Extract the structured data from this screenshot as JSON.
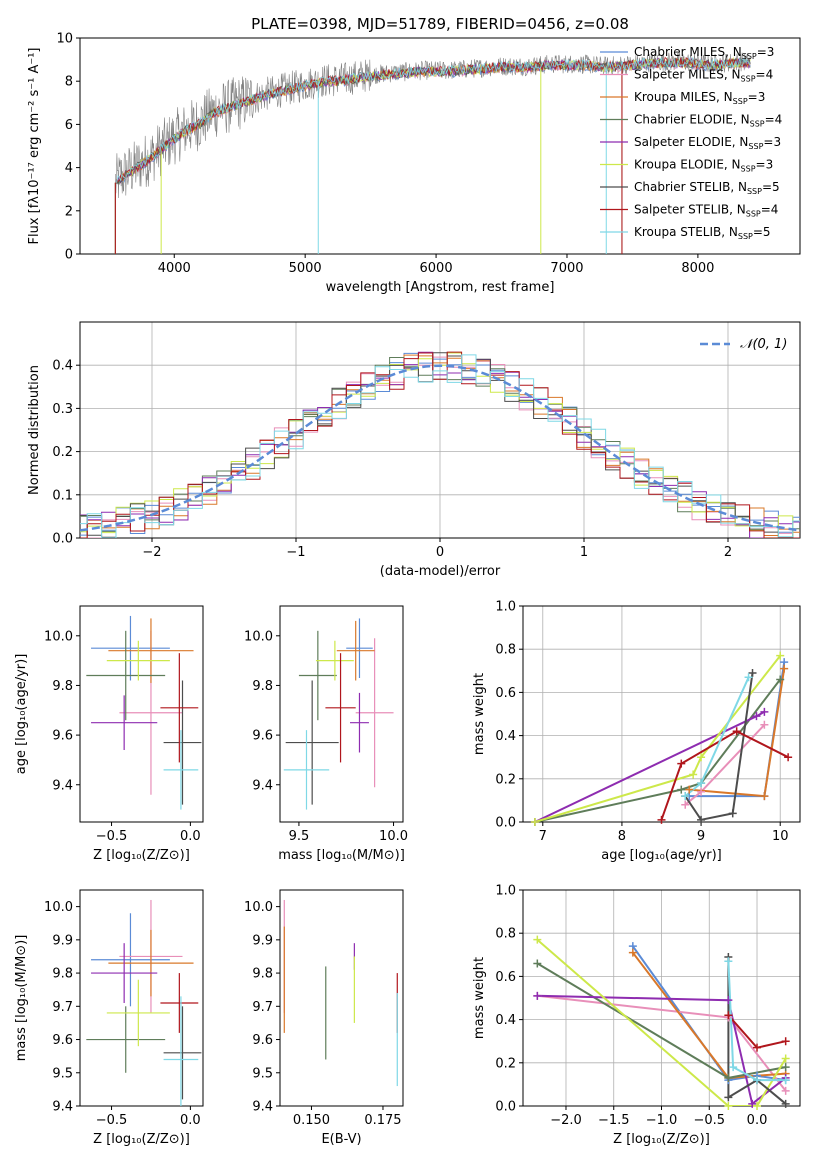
{
  "figure_title": "PLATE=0398, MJD=51789, FIBERID=0456, z=0.08",
  "series_colors": {
    "Chabrier MILES": "#5b8bd6",
    "Salpeter MILES": "#e88fb9",
    "Kroupa MILES": "#d9782a",
    "Chabrier ELODIE": "#5f7d5a",
    "Salpeter ELODIE": "#8e2cb0",
    "Kroupa ELODIE": "#cde84a",
    "Chabrier STELIB": "#4d4d4d",
    "Salpeter STELIB": "#b0161c",
    "Kroupa STELIB": "#7fd8e6"
  },
  "chart_data": [
    {
      "id": "spectrum",
      "type": "line",
      "xlabel": "wavelength [Angstrom, rest frame]",
      "ylabel": "Flux [fλ10⁻¹⁷ erg cm⁻² s⁻¹ A⁻¹]",
      "xlim": [
        3280,
        8780
      ],
      "ylim": [
        0,
        10
      ],
      "xticks": [
        4000,
        5000,
        6000,
        7000,
        8000
      ],
      "yticks": [
        0,
        2,
        4,
        6,
        8,
        10
      ],
      "legend_position": "right",
      "legend": [
        {
          "name": "Chabrier MILES",
          "nssp": "3"
        },
        {
          "name": "Salpeter MILES",
          "nssp": "4"
        },
        {
          "name": "Kroupa MILES",
          "nssp": "3"
        },
        {
          "name": "Chabrier ELODIE",
          "nssp": "4"
        },
        {
          "name": "Salpeter ELODIE",
          "nssp": "3"
        },
        {
          "name": "Kroupa ELODIE",
          "nssp": "3"
        },
        {
          "name": "Chabrier STELIB",
          "nssp": "5"
        },
        {
          "name": "Salpeter STELIB",
          "nssp": "4"
        },
        {
          "name": "Kroupa STELIB",
          "nssp": "5"
        }
      ],
      "data_curve": {
        "x": [
          3550,
          3600,
          3700,
          3800,
          3900,
          4000,
          4100,
          4200,
          4300,
          4500,
          4700,
          4900,
          5100,
          5300,
          5500,
          5700,
          5900,
          6100,
          6300,
          6500,
          6700,
          6900,
          7100,
          7300,
          7500,
          7700,
          7900,
          8100,
          8300
        ],
        "y": [
          3.3,
          3.6,
          4.0,
          4.4,
          4.9,
          5.4,
          5.8,
          6.1,
          6.6,
          7.0,
          7.4,
          7.7,
          8.0,
          8.1,
          8.3,
          8.4,
          8.5,
          8.5,
          8.6,
          8.7,
          8.7,
          8.8,
          8.8,
          8.7,
          8.8,
          8.9,
          8.9,
          8.8,
          8.9
        ]
      }
    },
    {
      "id": "residuals",
      "type": "histogram",
      "xlabel": "(data-model)/error",
      "ylabel": "Normed distribution",
      "xlim": [
        -2.5,
        2.5
      ],
      "ylim": [
        0,
        0.5
      ],
      "xticks": [
        -2,
        -1,
        0,
        1,
        2
      ],
      "yticks": [
        0.0,
        0.1,
        0.2,
        0.3,
        0.4
      ],
      "grid": true,
      "legend_position": "top-right",
      "gaussian_label": "𝒩(0, 1)",
      "gaussian_color": "#5b8bd6"
    },
    {
      "id": "age_vs_Z",
      "type": "errorbar",
      "xlabel": "Z [log₁₀(Z/Z⊙)]",
      "ylabel": "age  [log₁₀(age/yr)]",
      "xlim": [
        -0.7,
        0.08
      ],
      "ylim": [
        9.25,
        10.12
      ],
      "xticks": [
        -0.5,
        0.0
      ],
      "yticks": [
        9.4,
        9.6,
        9.8,
        10.0
      ],
      "points": [
        {
          "s": "Chabrier MILES",
          "x": -0.38,
          "xerr": 0.25,
          "y": 9.95,
          "yerr": 0.13
        },
        {
          "s": "Salpeter MILES",
          "x": -0.25,
          "xerr": 0.2,
          "y": 9.69,
          "yerr": 0.33
        },
        {
          "s": "Kroupa MILES",
          "x": -0.25,
          "xerr": 0.27,
          "y": 9.94,
          "yerr": 0.13
        },
        {
          "s": "Chabrier ELODIE",
          "x": -0.41,
          "xerr": 0.25,
          "y": 9.84,
          "yerr": 0.18
        },
        {
          "s": "Salpeter ELODIE",
          "x": -0.42,
          "xerr": 0.21,
          "y": 9.65,
          "yerr": 0.11
        },
        {
          "s": "Kroupa ELODIE",
          "x": -0.33,
          "xerr": 0.2,
          "y": 9.9,
          "yerr": 0.08
        },
        {
          "s": "Chabrier STELIB",
          "x": -0.05,
          "xerr": 0.12,
          "y": 9.57,
          "yerr": 0.25
        },
        {
          "s": "Salpeter STELIB",
          "x": -0.07,
          "xerr": 0.12,
          "y": 9.71,
          "yerr": 0.22
        },
        {
          "s": "Kroupa STELIB",
          "x": -0.06,
          "xerr": 0.11,
          "y": 9.46,
          "yerr": 0.16
        }
      ]
    },
    {
      "id": "age_vs_mass",
      "type": "errorbar",
      "xlabel": "mass [log₁₀(M/M⊙)]",
      "xlim": [
        9.4,
        10.05
      ],
      "ylim": [
        9.25,
        10.12
      ],
      "xticks": [
        9.5,
        10.0
      ],
      "yticks": [
        9.4,
        9.6,
        9.8,
        10.0
      ],
      "points": [
        {
          "s": "Chabrier MILES",
          "x": 9.82,
          "xerr": 0.07,
          "y": 9.95,
          "yerr": 0.12
        },
        {
          "s": "Salpeter MILES",
          "x": 9.9,
          "xerr": 0.1,
          "y": 9.69,
          "yerr": 0.3
        },
        {
          "s": "Kroupa MILES",
          "x": 9.8,
          "xerr": 0.1,
          "y": 9.94,
          "yerr": 0.12
        },
        {
          "s": "Chabrier ELODIE",
          "x": 9.6,
          "xerr": 0.1,
          "y": 9.84,
          "yerr": 0.18
        },
        {
          "s": "Salpeter ELODIE",
          "x": 9.82,
          "xerr": 0.05,
          "y": 9.65,
          "yerr": 0.12
        },
        {
          "s": "Kroupa ELODIE",
          "x": 9.69,
          "xerr": 0.1,
          "y": 9.9,
          "yerr": 0.08
        },
        {
          "s": "Chabrier STELIB",
          "x": 9.57,
          "xerr": 0.14,
          "y": 9.57,
          "yerr": 0.25
        },
        {
          "s": "Salpeter STELIB",
          "x": 9.72,
          "xerr": 0.08,
          "y": 9.71,
          "yerr": 0.22
        },
        {
          "s": "Kroupa STELIB",
          "x": 9.54,
          "xerr": 0.12,
          "y": 9.46,
          "yerr": 0.16
        }
      ]
    },
    {
      "id": "weight_vs_age",
      "type": "line",
      "xlabel": "age  [log₁₀(age/yr)]",
      "ylabel": "mass weight",
      "xlim": [
        6.75,
        10.25
      ],
      "ylim": [
        0,
        1
      ],
      "xticks": [
        7,
        8,
        9,
        10
      ],
      "yticks": [
        0.0,
        0.2,
        0.4,
        0.6,
        0.8,
        1.0
      ],
      "grid": true,
      "series": [
        {
          "name": "Chabrier MILES",
          "x": [
            8.85,
            9.8,
            10.05
          ],
          "y": [
            0.12,
            0.12,
            0.74
          ]
        },
        {
          "name": "Salpeter MILES",
          "x": [
            8.8,
            9.0,
            9.8
          ],
          "y": [
            0.08,
            0.14,
            0.45
          ]
        },
        {
          "name": "Kroupa MILES",
          "x": [
            8.85,
            9.8,
            10.05
          ],
          "y": [
            0.15,
            0.12,
            0.71
          ]
        },
        {
          "name": "Chabrier ELODIE",
          "x": [
            6.9,
            8.75,
            9.0,
            10.0
          ],
          "y": [
            0.0,
            0.15,
            0.18,
            0.66
          ]
        },
        {
          "name": "Salpeter ELODIE",
          "x": [
            6.9,
            9.7,
            9.8
          ],
          "y": [
            0.0,
            0.49,
            0.51
          ]
        },
        {
          "name": "Kroupa ELODIE",
          "x": [
            6.9,
            8.9,
            9.0,
            10.0
          ],
          "y": [
            0.0,
            0.22,
            0.3,
            0.77
          ]
        },
        {
          "name": "Chabrier STELIB",
          "x": [
            8.8,
            9.0,
            9.4,
            9.65
          ],
          "y": [
            0.12,
            0.01,
            0.04,
            0.69
          ]
        },
        {
          "name": "Salpeter STELIB",
          "x": [
            8.5,
            8.75,
            9.45,
            10.1
          ],
          "y": [
            0.01,
            0.27,
            0.42,
            0.3
          ]
        },
        {
          "name": "Kroupa STELIB",
          "x": [
            8.8,
            9.0,
            9.6
          ],
          "y": [
            0.12,
            0.18,
            0.67
          ]
        }
      ]
    },
    {
      "id": "mass_vs_Z",
      "type": "errorbar",
      "xlabel": "Z [log₁₀(Z/Z⊙)]",
      "ylabel": "mass [log₁₀(M/M⊙)]",
      "xlim": [
        -0.7,
        0.08
      ],
      "ylim": [
        9.4,
        10.05
      ],
      "xticks": [
        -0.5,
        0.0
      ],
      "yticks": [
        9.4,
        9.5,
        9.6,
        9.7,
        9.8,
        9.9,
        10.0
      ],
      "points": [
        {
          "s": "Chabrier MILES",
          "x": -0.38,
          "xerr": 0.25,
          "y": 9.84,
          "yerr": 0.14
        },
        {
          "s": "Salpeter MILES",
          "x": -0.25,
          "xerr": 0.2,
          "y": 9.85,
          "yerr": 0.17
        },
        {
          "s": "Kroupa MILES",
          "x": -0.25,
          "xerr": 0.27,
          "y": 9.83,
          "yerr": 0.1
        },
        {
          "s": "Chabrier ELODIE",
          "x": -0.41,
          "xerr": 0.25,
          "y": 9.6,
          "yerr": 0.1
        },
        {
          "s": "Salpeter ELODIE",
          "x": -0.42,
          "xerr": 0.21,
          "y": 9.8,
          "yerr": 0.09
        },
        {
          "s": "Kroupa ELODIE",
          "x": -0.33,
          "xerr": 0.2,
          "y": 9.68,
          "yerr": 0.1
        },
        {
          "s": "Chabrier STELIB",
          "x": -0.05,
          "xerr": 0.12,
          "y": 9.56,
          "yerr": 0.14
        },
        {
          "s": "Salpeter STELIB",
          "x": -0.07,
          "xerr": 0.12,
          "y": 9.71,
          "yerr": 0.09
        },
        {
          "s": "Kroupa STELIB",
          "x": -0.06,
          "xerr": 0.11,
          "y": 9.54,
          "yerr": 0.19
        }
      ]
    },
    {
      "id": "mass_vs_ebv",
      "type": "errorbar",
      "xlabel": "E(B-V)",
      "xlim": [
        0.139,
        0.182
      ],
      "ylim": [
        9.4,
        10.05
      ],
      "xticks": [
        0.15,
        0.175
      ],
      "yticks": [
        9.4,
        9.5,
        9.6,
        9.7,
        9.8,
        9.9,
        10.0
      ],
      "points": [
        {
          "s": "Salpeter MILES",
          "x": 0.1405,
          "y": 9.85,
          "yerr": 0.17
        },
        {
          "s": "Kroupa MILES",
          "x": 0.1405,
          "y": 9.78,
          "yerr": 0.16
        },
        {
          "s": "Chabrier ELODIE",
          "x": 0.155,
          "y": 9.68,
          "yerr": 0.14
        },
        {
          "s": "Salpeter ELODIE",
          "x": 0.165,
          "y": 9.85,
          "yerr": 0.04
        },
        {
          "s": "Kroupa ELODIE",
          "x": 0.165,
          "y": 9.75,
          "yerr": 0.1
        },
        {
          "s": "Salpeter STELIB",
          "x": 0.18,
          "y": 9.71,
          "yerr": 0.09
        },
        {
          "s": "Kroupa STELIB",
          "x": 0.18,
          "y": 9.6,
          "yerr": 0.14
        }
      ]
    },
    {
      "id": "weight_vs_Z",
      "type": "line",
      "xlabel": "Z [log₁₀(Z/Z⊙)]",
      "ylabel": "mass weight",
      "xlim": [
        -2.45,
        0.45
      ],
      "ylim": [
        0,
        1
      ],
      "xticks": [
        -2.0,
        -1.5,
        -1.0,
        -0.5,
        0.0
      ],
      "yticks": [
        0.0,
        0.2,
        0.4,
        0.6,
        0.8,
        1.0
      ],
      "grid": true,
      "series": [
        {
          "name": "Chabrier MILES",
          "x": [
            -1.3,
            -0.3,
            0.0,
            0.3
          ],
          "y": [
            0.74,
            0.12,
            0.14,
            0.12
          ]
        },
        {
          "name": "Salpeter MILES",
          "x": [
            -2.3,
            -0.3,
            0.3
          ],
          "y": [
            0.51,
            0.41,
            0.07
          ]
        },
        {
          "name": "Kroupa MILES",
          "x": [
            -1.3,
            -0.3,
            0.3
          ],
          "y": [
            0.71,
            0.13,
            0.15
          ]
        },
        {
          "name": "Chabrier ELODIE",
          "x": [
            -2.3,
            -0.3,
            0.3
          ],
          "y": [
            0.66,
            0.13,
            0.18
          ]
        },
        {
          "name": "Salpeter ELODIE",
          "x": [
            -2.3,
            -0.3,
            -0.05,
            0.3
          ],
          "y": [
            0.51,
            0.49,
            0.01,
            0.13
          ]
        },
        {
          "name": "Kroupa ELODIE",
          "x": [
            -2.3,
            -0.3,
            0.0,
            0.3
          ],
          "y": [
            0.77,
            0.0,
            0.0,
            0.22
          ]
        },
        {
          "name": "Chabrier STELIB",
          "x": [
            -0.3,
            -0.3,
            0.0,
            0.3
          ],
          "y": [
            0.69,
            0.04,
            0.12,
            0.01
          ]
        },
        {
          "name": "Salpeter STELIB",
          "x": [
            0.3,
            0.0,
            -0.3
          ],
          "y": [
            0.3,
            0.27,
            0.42
          ]
        },
        {
          "name": "Kroupa STELIB",
          "x": [
            -0.3,
            -0.25,
            0.0,
            0.3
          ],
          "y": [
            0.67,
            0.18,
            0.12,
            0.12
          ]
        }
      ]
    }
  ]
}
